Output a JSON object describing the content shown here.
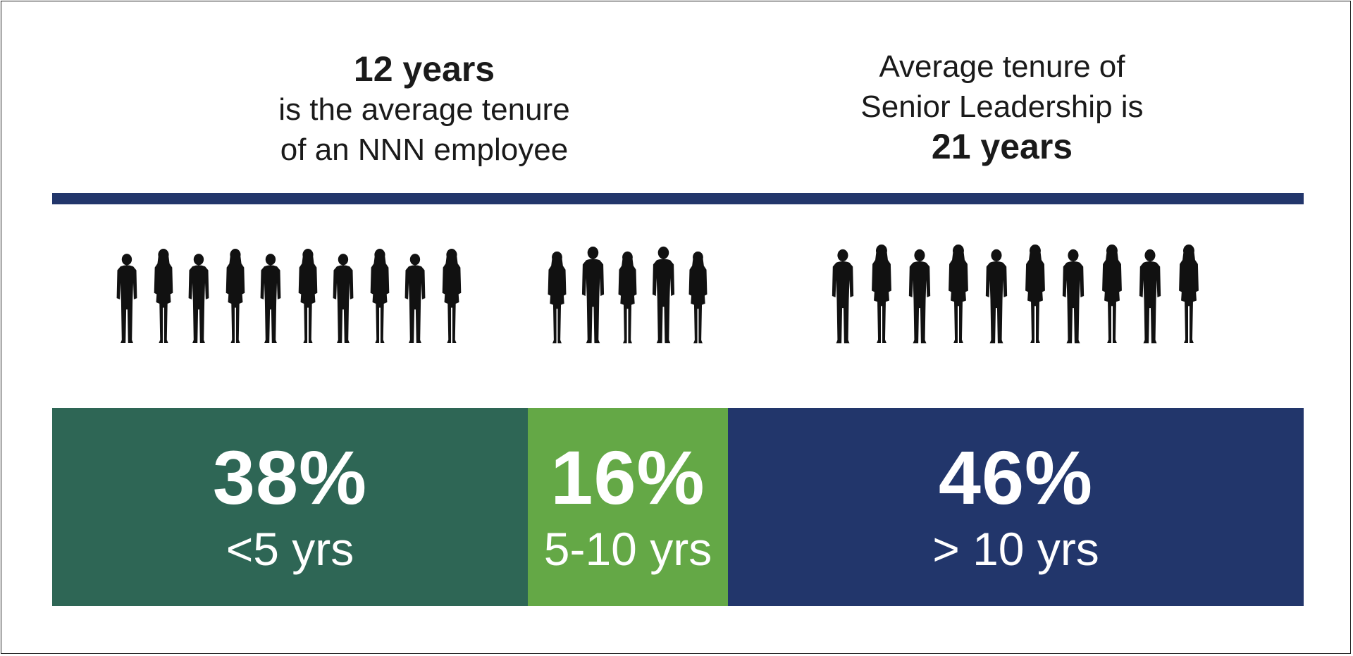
{
  "colors": {
    "navy": "#22366b",
    "dark_green": "#2e6655",
    "light_green": "#64a846",
    "silhouette": "#111111"
  },
  "stat_left": {
    "value": "12 years",
    "line1": "is the average tenure",
    "line2": "of an NNN employee"
  },
  "stat_right": {
    "line1": "Average tenure of",
    "line2": "Senior Leadership is",
    "value": "21 years"
  },
  "segments": [
    {
      "percent": "38%",
      "label": "<5 yrs",
      "share": 38,
      "color": "#2e6655"
    },
    {
      "percent": "16%",
      "label": "5-10 yrs",
      "share": 16,
      "color": "#64a846"
    },
    {
      "percent": "46%",
      "label": "> 10 yrs",
      "share": 46,
      "color": "#22366b"
    }
  ],
  "people_groups": [
    {
      "icon": "people-silhouette-icon",
      "count": 10
    },
    {
      "icon": "people-silhouette-icon",
      "count": 5
    },
    {
      "icon": "people-silhouette-icon",
      "count": 10
    }
  ]
}
